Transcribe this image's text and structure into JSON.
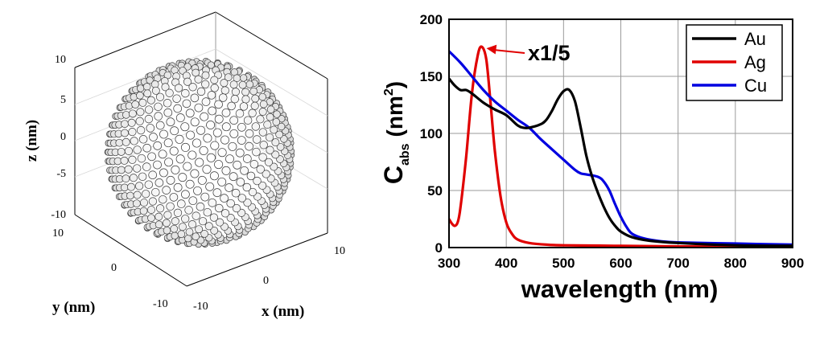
{
  "left_panel": {
    "type": "3d-scatter",
    "description_kind": "atomistic-nanosphere",
    "axes": {
      "x": {
        "label": "x (nm)",
        "ticks": [
          "-10",
          "0",
          "10"
        ]
      },
      "y": {
        "label": "y (nm)",
        "ticks": [
          "-10",
          "0",
          "10"
        ]
      },
      "z": {
        "label": "z (nm)",
        "ticks": [
          "10",
          "5",
          "0",
          "-5",
          "-10"
        ]
      }
    },
    "sphere_radius_nm": 10,
    "colors": {
      "atom_fill": "#ffffff",
      "atom_stroke": "#333333",
      "box": "#000000"
    }
  },
  "chart_data": {
    "type": "line",
    "title": "",
    "xlabel": "wavelength (nm)",
    "ylabel_main": "C",
    "ylabel_sub": "abs",
    "ylabel_units": "(nm",
    "ylabel_units_sup": "2",
    "ylabel_units_close": ")",
    "xlim": [
      300,
      900
    ],
    "ylim": [
      0,
      200
    ],
    "x_ticks": [
      "300",
      "400",
      "500",
      "600",
      "700",
      "800",
      "900"
    ],
    "y_ticks": [
      "0",
      "50",
      "100",
      "150",
      "200"
    ],
    "grid": true,
    "legend_position": "top-right",
    "annotation": {
      "text": "x1/5",
      "target_series": "Ag",
      "target_x": 357,
      "target_y": 176
    },
    "series": [
      {
        "name": "Au",
        "color": "#000000",
        "points": [
          [
            300,
            148
          ],
          [
            310,
            142
          ],
          [
            320,
            138
          ],
          [
            330,
            138
          ],
          [
            340,
            135
          ],
          [
            360,
            127
          ],
          [
            380,
            121
          ],
          [
            400,
            116
          ],
          [
            420,
            107
          ],
          [
            430,
            105
          ],
          [
            440,
            105
          ],
          [
            460,
            108
          ],
          [
            470,
            112
          ],
          [
            480,
            120
          ],
          [
            490,
            130
          ],
          [
            500,
            137
          ],
          [
            510,
            138
          ],
          [
            520,
            128
          ],
          [
            530,
            105
          ],
          [
            540,
            80
          ],
          [
            550,
            62
          ],
          [
            560,
            48
          ],
          [
            570,
            36
          ],
          [
            580,
            26
          ],
          [
            590,
            19
          ],
          [
            600,
            14
          ],
          [
            620,
            9
          ],
          [
            650,
            6
          ],
          [
            700,
            4
          ],
          [
            800,
            2
          ],
          [
            900,
            1.5
          ]
        ]
      },
      {
        "name": "Ag",
        "color": "#e00000",
        "points": [
          [
            300,
            25
          ],
          [
            305,
            21
          ],
          [
            310,
            19
          ],
          [
            315,
            22
          ],
          [
            320,
            35
          ],
          [
            330,
            80
          ],
          [
            340,
            135
          ],
          [
            350,
            168
          ],
          [
            357,
            176
          ],
          [
            365,
            165
          ],
          [
            372,
            130
          ],
          [
            380,
            85
          ],
          [
            390,
            45
          ],
          [
            400,
            22
          ],
          [
            410,
            12
          ],
          [
            420,
            7
          ],
          [
            440,
            4
          ],
          [
            470,
            2.5
          ],
          [
            500,
            2
          ],
          [
            600,
            1.5
          ],
          [
            700,
            1
          ],
          [
            800,
            0.8
          ],
          [
            900,
            0.5
          ]
        ]
      },
      {
        "name": "Cu",
        "color": "#0000e0",
        "points": [
          [
            300,
            172
          ],
          [
            320,
            162
          ],
          [
            340,
            150
          ],
          [
            360,
            138
          ],
          [
            380,
            128
          ],
          [
            400,
            120
          ],
          [
            420,
            112
          ],
          [
            440,
            105
          ],
          [
            460,
            95
          ],
          [
            480,
            86
          ],
          [
            500,
            77
          ],
          [
            520,
            68
          ],
          [
            530,
            65
          ],
          [
            540,
            64
          ],
          [
            560,
            62
          ],
          [
            570,
            58
          ],
          [
            580,
            50
          ],
          [
            590,
            38
          ],
          [
            600,
            27
          ],
          [
            610,
            18
          ],
          [
            620,
            12
          ],
          [
            640,
            8
          ],
          [
            670,
            5.5
          ],
          [
            700,
            4.5
          ],
          [
            800,
            3.5
          ],
          [
            900,
            2.5
          ]
        ]
      }
    ]
  }
}
